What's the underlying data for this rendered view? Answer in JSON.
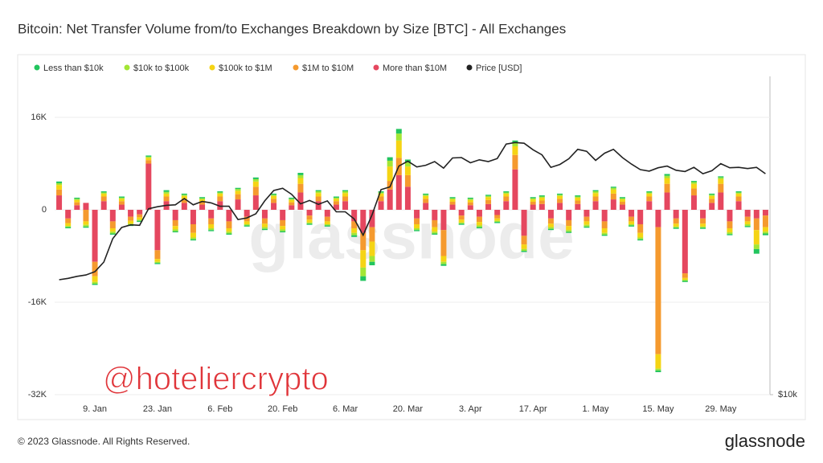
{
  "chart_data": {
    "type": "bar",
    "title": "Bitcoin: Net Transfer Volume from/to Exchanges Breakdown by Size [BTC] - All Exchanges",
    "watermark": "glassnode",
    "overlay_text": "@hoteliercrypto",
    "copyright": "© 2023 Glassnode. All Rights Reserved.",
    "logo": "glassnode",
    "stacked": true,
    "grid": true,
    "legend": "top",
    "categories": [
      null,
      null,
      null,
      null,
      "9. Jan",
      null,
      null,
      null,
      null,
      null,
      null,
      "23. Jan",
      null,
      null,
      null,
      null,
      null,
      null,
      "6. Feb",
      null,
      null,
      null,
      null,
      null,
      null,
      "20. Feb",
      null,
      null,
      null,
      null,
      null,
      null,
      "6. Mar",
      null,
      null,
      null,
      null,
      null,
      null,
      "20. Mar",
      null,
      null,
      null,
      null,
      null,
      null,
      "3. Apr",
      null,
      null,
      null,
      null,
      null,
      null,
      "17. Apr",
      null,
      null,
      null,
      null,
      null,
      null,
      "1. May",
      null,
      null,
      null,
      null,
      null,
      null,
      "15. May",
      null,
      null,
      null,
      null,
      null,
      null,
      "29. May",
      null,
      null,
      null,
      null,
      null
    ],
    "ylim": [
      -32000,
      23100
    ],
    "yticks": [
      {
        "value": 16000,
        "label": "16K"
      },
      0,
      {
        "value": -16000,
        "label": "-16K"
      },
      {
        "value": -32000,
        "label": "-32K"
      }
    ],
    "y2lim": [
      10000,
      40700
    ],
    "y2scale": "log",
    "y2ticks": [
      {
        "value": 10000,
        "label": "$10k"
      }
    ],
    "series": [
      {
        "name": "Less than $10k",
        "color": "#22c55e",
        "values": [
          300,
          -200,
          200,
          -200,
          -200,
          200,
          -200,
          200,
          -200,
          -200,
          200,
          -200,
          300,
          -200,
          200,
          -200,
          200,
          -200,
          200,
          -200,
          200,
          -200,
          300,
          -200,
          200,
          -200,
          200,
          400,
          -200,
          200,
          -200,
          200,
          200,
          -300,
          -800,
          -600,
          200,
          600,
          800,
          500,
          -200,
          200,
          -200,
          -300,
          200,
          -200,
          200,
          -200,
          200,
          -200,
          200,
          400,
          -200,
          200,
          200,
          -200,
          200,
          -200,
          200,
          -200,
          200,
          -200,
          200,
          200,
          -200,
          -200,
          200,
          -300,
          300,
          -200,
          -200,
          200,
          -200,
          200,
          200,
          -200,
          200,
          -200,
          -800,
          -300
        ]
      },
      {
        "name": "$10k to $100k",
        "color": "#a3e635",
        "values": [
          300,
          -200,
          200,
          -300,
          -300,
          200,
          -300,
          200,
          -200,
          -200,
          200,
          -200,
          300,
          -300,
          200,
          -300,
          200,
          -300,
          200,
          -300,
          300,
          -200,
          400,
          -300,
          200,
          -300,
          200,
          500,
          -200,
          300,
          -200,
          200,
          300,
          -400,
          -1500,
          -1000,
          200,
          1000,
          1200,
          700,
          -300,
          200,
          -300,
          -400,
          200,
          -200,
          200,
          -300,
          200,
          -200,
          200,
          600,
          -300,
          200,
          200,
          -300,
          200,
          -300,
          200,
          -300,
          300,
          -300,
          300,
          200,
          -200,
          -300,
          200,
          -300,
          400,
          -200,
          -200,
          300,
          -200,
          200,
          300,
          -300,
          200,
          -300,
          -800,
          -300
        ]
      },
      {
        "name": "$100k to $1M",
        "color": "#f5d414",
        "values": [
          800,
          -500,
          400,
          -600,
          -1000,
          500,
          -600,
          400,
          -500,
          -400,
          400,
          -500,
          500,
          -600,
          500,
          -800,
          400,
          -700,
          500,
          -600,
          600,
          -500,
          900,
          -600,
          500,
          -600,
          400,
          1000,
          -500,
          600,
          -500,
          400,
          600,
          -800,
          -3000,
          -2500,
          500,
          2500,
          3000,
          1500,
          -700,
          500,
          -800,
          -1000,
          400,
          -500,
          400,
          -600,
          500,
          -400,
          500,
          1500,
          -800,
          400,
          500,
          -600,
          500,
          -700,
          500,
          -600,
          600,
          -800,
          700,
          400,
          -500,
          -800,
          500,
          -2500,
          1000,
          -500,
          -300,
          800,
          -500,
          500,
          800,
          -700,
          500,
          -500,
          -2500,
          -800
        ]
      },
      {
        "name": "$1M to $10M",
        "color": "#f59a2e",
        "values": [
          1000,
          -800,
          500,
          -2000,
          -2500,
          800,
          -1200,
          600,
          -700,
          -500,
          600,
          -1500,
          800,
          -1000,
          700,
          -1500,
          500,
          -1000,
          800,
          -1200,
          900,
          -800,
          1500,
          -900,
          700,
          -1000,
          500,
          1500,
          -700,
          800,
          -800,
          600,
          800,
          -1200,
          -3000,
          -2500,
          800,
          1500,
          3000,
          2000,
          -1000,
          700,
          -1200,
          -4500,
          500,
          -700,
          500,
          -900,
          700,
          -600,
          800,
          2500,
          -1500,
          500,
          600,
          -900,
          700,
          -1000,
          600,
          -800,
          800,
          -1200,
          1000,
          500,
          -800,
          -1500,
          800,
          -22000,
          1500,
          -900,
          -800,
          1200,
          -900,
          700,
          1500,
          -1200,
          800,
          -800,
          -2000,
          -2000
        ]
      },
      {
        "name": "More than $10M",
        "color": "#e5475f",
        "values": [
          2500,
          -1500,
          800,
          1200,
          -9000,
          1500,
          -2000,
          900,
          -1200,
          -800,
          8000,
          -7000,
          1500,
          -1800,
          1200,
          -2500,
          900,
          -1500,
          1500,
          -2000,
          1800,
          -1200,
          2500,
          -1500,
          1200,
          -1800,
          800,
          3000,
          -1000,
          1500,
          -1200,
          900,
          1500,
          -2000,
          -4000,
          -3000,
          1500,
          3500,
          6000,
          4000,
          -1500,
          1200,
          -1800,
          -3500,
          900,
          -1000,
          800,
          -1200,
          1000,
          -900,
          1500,
          7000,
          -4500,
          900,
          1000,
          -1500,
          1200,
          -1800,
          1000,
          -1200,
          1500,
          -2000,
          1800,
          900,
          -1200,
          -2500,
          1500,
          -3000,
          3000,
          -1500,
          -11000,
          2500,
          -1500,
          1200,
          3000,
          -2000,
          1500,
          -1200,
          -1500,
          -1000
        ]
      },
      {
        "name": "Price [USD]",
        "color": "#222222",
        "type": "line",
        "axis": "y2",
        "values": [
          16600,
          16700,
          16850,
          16950,
          17200,
          17950,
          19900,
          20900,
          21150,
          21100,
          22700,
          22900,
          23050,
          23100,
          23750,
          23100,
          23450,
          23300,
          22950,
          22950,
          21650,
          21800,
          22200,
          23500,
          24600,
          24850,
          24200,
          23200,
          23550,
          23150,
          23500,
          22400,
          22400,
          21700,
          20200,
          22100,
          24700,
          25000,
          27400,
          28000,
          27300,
          27500,
          27950,
          27150,
          28400,
          28450,
          27800,
          28170,
          27950,
          28330,
          30200,
          30400,
          30300,
          29450,
          28800,
          27250,
          27600,
          28300,
          29500,
          29250,
          28100,
          29000,
          29500,
          28450,
          27650,
          26980,
          26800,
          27200,
          27400,
          26900,
          26750,
          27250,
          26500,
          26850,
          27700,
          27200,
          27250,
          27100,
          27250,
          26500
        ]
      }
    ]
  }
}
